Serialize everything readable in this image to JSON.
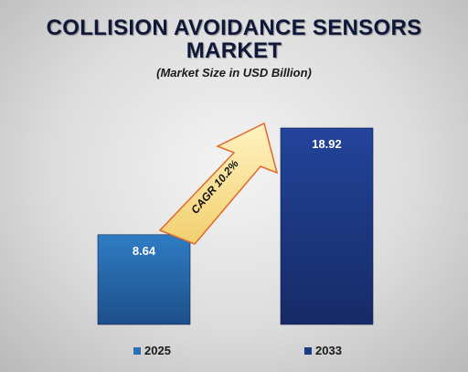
{
  "chart_data": {
    "type": "bar",
    "title_line1": "COLLISION AVOIDANCE SENSORS",
    "title_line2": "MARKET",
    "subtitle": "(Market Size in USD Billion)",
    "categories": [
      "2025",
      "2033"
    ],
    "values": [
      8.64,
      18.92
    ],
    "value_labels": [
      "8.64",
      "18.92"
    ],
    "colors": [
      "#2a6fb8",
      "#1c3b82"
    ],
    "annotation": "CAGR 10.2%",
    "legend": [
      "2025",
      "2033"
    ],
    "legend_placement": "bottom",
    "grid": false
  }
}
